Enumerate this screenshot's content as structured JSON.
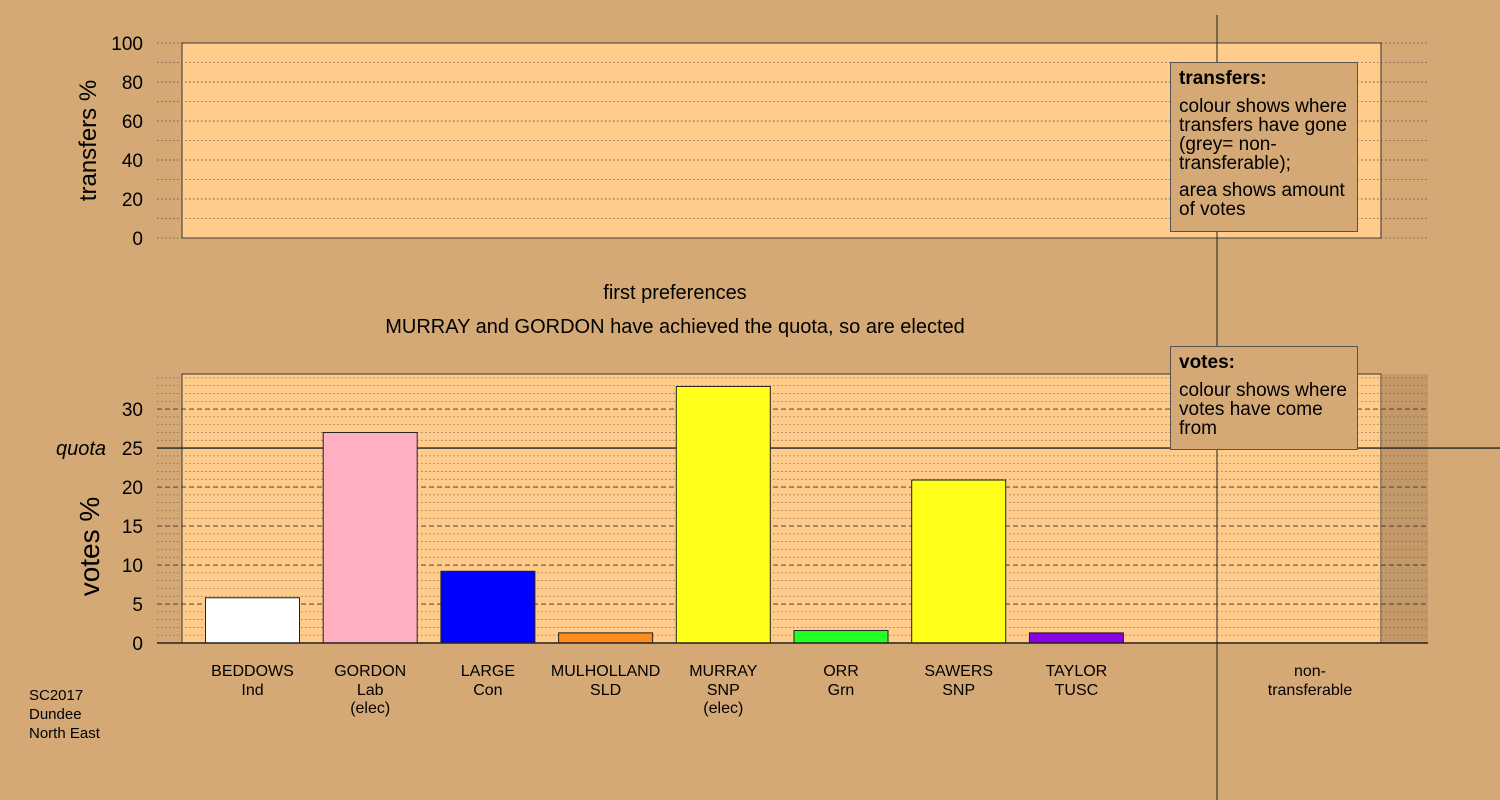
{
  "corner": {
    "line1": "SC2017",
    "line2": "Dundee",
    "line3": "North East"
  },
  "transfers_legend": {
    "heading": "transfers:",
    "text1": "colour shows where transfers have gone (grey= non-transferable);",
    "text2": "area shows amount of votes"
  },
  "votes_legend": {
    "heading": "votes:",
    "text1": "colour shows where votes have come from"
  },
  "chart_data": [
    {
      "type": "bar",
      "panel": "transfers",
      "ylabel": "transfers %",
      "ylim": [
        0,
        100
      ],
      "yticks": [
        0,
        20,
        40,
        60,
        80,
        100
      ],
      "values": []
    },
    {
      "type": "bar",
      "panel": "votes",
      "title": "first preferences",
      "subtitle": "MURRAY and GORDON have achieved the quota, so are elected",
      "ylabel": "votes %",
      "ylim": [
        0,
        34.5
      ],
      "yticks": [
        0,
        5,
        10,
        15,
        20,
        25,
        30
      ],
      "quota": 25.0,
      "quota_label": "quota",
      "grid": "dashed",
      "categories": [
        {
          "name": "BEDDOWS",
          "party": "Ind",
          "note": ""
        },
        {
          "name": "GORDON",
          "party": "Lab",
          "note": "(elec)"
        },
        {
          "name": "LARGE",
          "party": "Con",
          "note": ""
        },
        {
          "name": "MULHOLLAND",
          "party": "SLD",
          "note": ""
        },
        {
          "name": "MURRAY",
          "party": "SNP",
          "note": "(elec)"
        },
        {
          "name": "ORR",
          "party": "Grn",
          "note": ""
        },
        {
          "name": "SAWERS",
          "party": "SNP",
          "note": ""
        },
        {
          "name": "TAYLOR",
          "party": "TUSC",
          "note": ""
        }
      ],
      "values": [
        5.8,
        27.0,
        9.2,
        1.3,
        32.9,
        1.6,
        20.9,
        1.3
      ],
      "colors": [
        "#ffffff",
        "#ffb0c0",
        "#0000ff",
        "#ff8c1a",
        "#ffff19",
        "#22ff22",
        "#ffff19",
        "#8b00e0"
      ],
      "extra_label": {
        "line1": "non-",
        "line2": "transferable"
      }
    }
  ]
}
